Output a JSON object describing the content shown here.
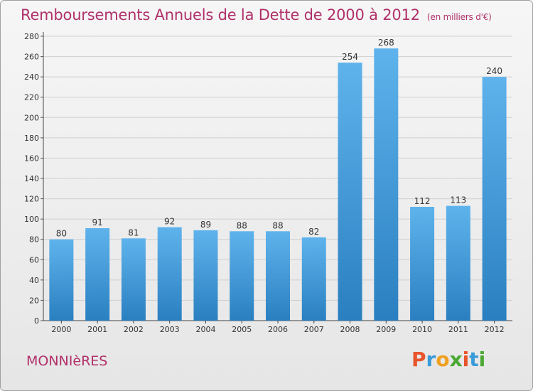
{
  "header": {
    "title": "Remboursements Annuels de la Dette de 2000 à 2012",
    "unit": "(en milliers d'€)"
  },
  "footer": {
    "commune": "MONNIèRES",
    "logo_letters": [
      {
        "char": "P",
        "color": "#e8542b"
      },
      {
        "char": "r",
        "color": "#3a9bd9"
      },
      {
        "char": "o",
        "color": "#f0a020"
      },
      {
        "char": "x",
        "color": "#4aa832"
      },
      {
        "char": "i",
        "color": "#e8542b"
      },
      {
        "char": "t",
        "color": "#3a9bd9"
      },
      {
        "char": "i",
        "color": "#4aa832"
      }
    ]
  },
  "chart_data": {
    "type": "bar",
    "title": "Remboursements Annuels de la Dette de 2000 à 2012",
    "unit": "(en milliers d'€)",
    "categories": [
      "2000",
      "2001",
      "2002",
      "2003",
      "2004",
      "2005",
      "2006",
      "2007",
      "2008",
      "2009",
      "2010",
      "2011",
      "2012"
    ],
    "values": [
      80,
      91,
      81,
      92,
      89,
      88,
      88,
      82,
      254,
      268,
      112,
      113,
      240
    ],
    "ylim": [
      0,
      280
    ],
    "yticks": [
      0,
      20,
      40,
      60,
      80,
      100,
      120,
      140,
      160,
      180,
      200,
      220,
      240,
      260,
      280
    ],
    "grid": true,
    "bar_color": "#4a9fe0",
    "legend": "none"
  }
}
